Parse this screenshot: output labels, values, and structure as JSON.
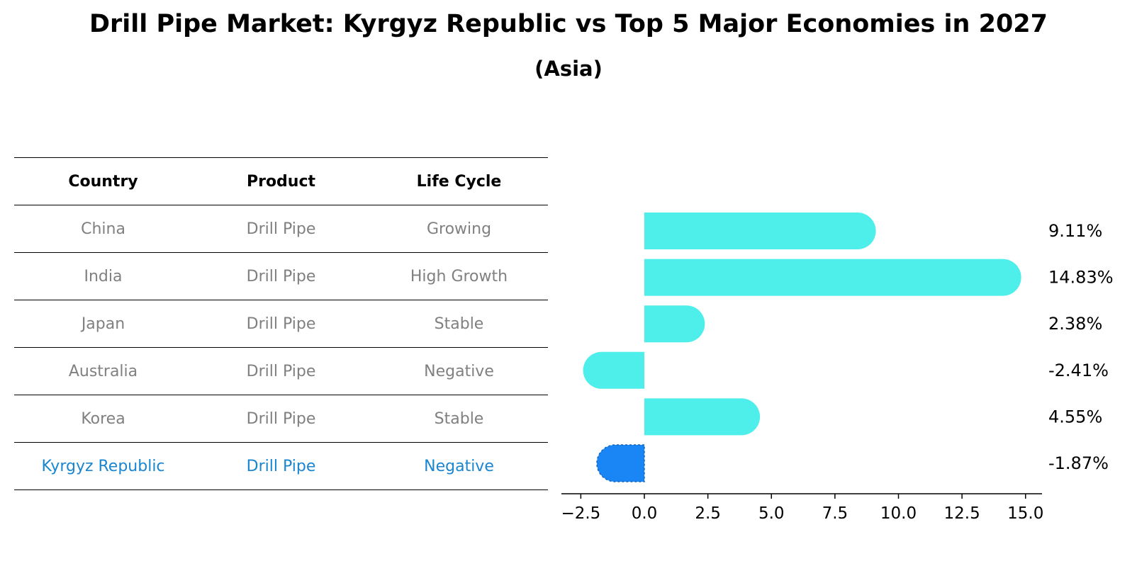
{
  "title": "Drill Pipe Market: Kyrgyz Republic vs Top 5 Major Economies in 2027",
  "subtitle": "(Asia)",
  "table": {
    "headers": [
      "Country",
      "Product",
      "Life Cycle"
    ],
    "rows": [
      {
        "country": "China",
        "product": "Drill Pipe",
        "life_cycle": "Growing"
      },
      {
        "country": "India",
        "product": "Drill Pipe",
        "life_cycle": "High Growth"
      },
      {
        "country": "Japan",
        "product": "Drill Pipe",
        "life_cycle": "Stable"
      },
      {
        "country": "Australia",
        "product": "Drill Pipe",
        "life_cycle": "Negative"
      },
      {
        "country": "Korea",
        "product": "Drill Pipe",
        "life_cycle": "Stable"
      },
      {
        "country": "Kyrgyz Republic",
        "product": "Drill Pipe",
        "life_cycle": "Negative"
      }
    ]
  },
  "chart_data": {
    "type": "bar",
    "orientation": "horizontal",
    "title": "Drill Pipe Market: Kyrgyz Republic vs Top 5 Major Economies in 2027",
    "subtitle": "(Asia)",
    "categories": [
      "China",
      "India",
      "Japan",
      "Australia",
      "Korea",
      "Kyrgyz Republic"
    ],
    "values": [
      9.11,
      14.83,
      2.38,
      -2.41,
      4.55,
      -1.87
    ],
    "value_labels": [
      "9.11%",
      "14.83%",
      "2.38%",
      "-2.41%",
      "4.55%",
      "-1.87%"
    ],
    "highlight_category": "Kyrgyz Republic",
    "xlim": [
      -3.2,
      15.8
    ],
    "xticks": [
      -2.5,
      0.0,
      2.5,
      5.0,
      7.5,
      10.0,
      12.5,
      15.0
    ],
    "xtick_labels": [
      "−2.5",
      "0.0",
      "2.5",
      "5.0",
      "7.5",
      "10.0",
      "12.5",
      "15.0"
    ],
    "xlabel": "",
    "ylabel": "",
    "grid": false,
    "colors": {
      "default": "#4eeeea",
      "highlight": "#1a86f5"
    }
  },
  "colors": {
    "table_text": "#808080",
    "highlight_text": "#1a86d0",
    "rule": "#000000"
  }
}
